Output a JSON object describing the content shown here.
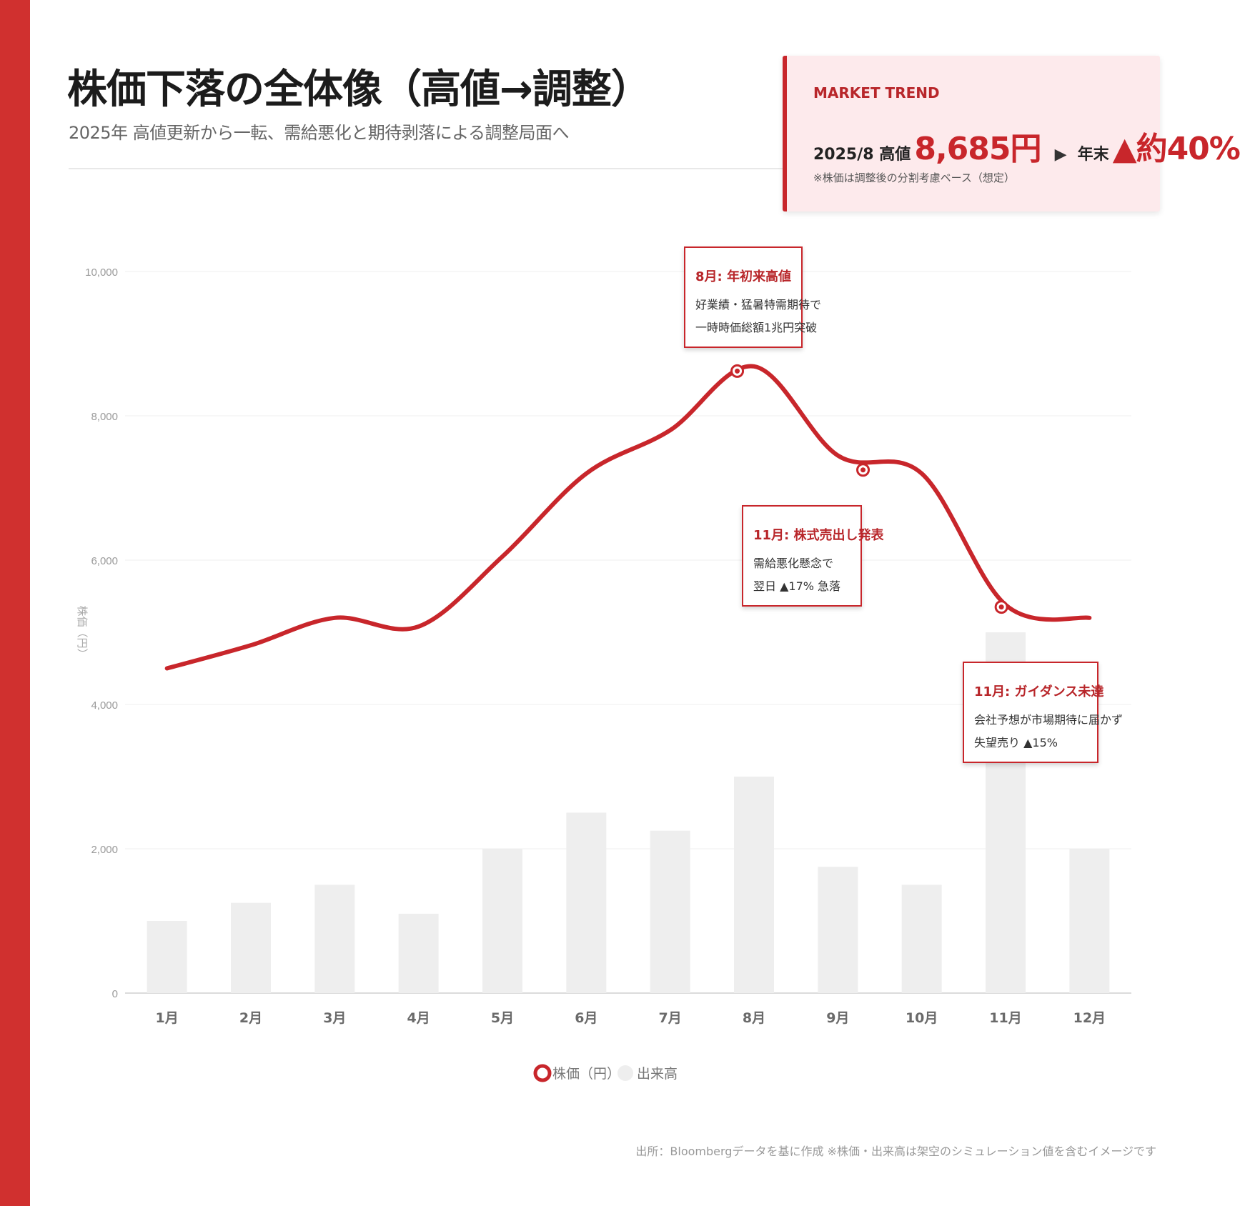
{
  "header": {
    "title": "株価下落の全体像（高値→調整）",
    "subtitle": "2025年 高値更新から一転、需給悪化と期待剥落による調整局面へ"
  },
  "trend_card": {
    "label": "MARKET TREND",
    "peak_label": "2025/8 高値",
    "peak_value": "8,685円",
    "arrow": "▶",
    "end_label": "年末",
    "change": "▲約40%",
    "note": "※株価は調整後の分割考慮ベース（想定）"
  },
  "chart_data": {
    "type": "bar+line",
    "categories": [
      "1月",
      "2月",
      "3月",
      "4月",
      "5月",
      "6月",
      "7月",
      "8月",
      "9月",
      "10月",
      "11月",
      "12月"
    ],
    "ylabel": "株価（円）",
    "ylim": [
      0,
      10000
    ],
    "yticks": [
      0,
      2000,
      4000,
      6000,
      8000,
      10000
    ],
    "ytick_labels": [
      "0",
      "2,000",
      "4,000",
      "6,000",
      "8,000",
      "10,000"
    ],
    "grid": true,
    "legend_position": "bottom",
    "series": [
      {
        "name": "株価（円）",
        "type": "line",
        "color": "#c8262b",
        "values": [
          4500,
          4820,
          5200,
          5080,
          6050,
          7200,
          7800,
          8685,
          7450,
          7200,
          5380,
          5200
        ]
      },
      {
        "name": "出来高",
        "type": "bar",
        "color": "#eeeeee",
        "values": [
          1000,
          1250,
          1500,
          1100,
          2000,
          2500,
          2250,
          3000,
          1750,
          1500,
          5000,
          2000
        ]
      }
    ],
    "markers": [
      {
        "x": 7.8,
        "y": 8620
      },
      {
        "x": 9.3,
        "y": 7250
      },
      {
        "x": 10.95,
        "y": 5350
      }
    ],
    "annotations": [
      {
        "title": "8月: 年初来高値",
        "lines": [
          "好業績・猛暑特需期待で",
          "一時時価総額1兆円突破"
        ]
      },
      {
        "title": "11月: 株式売出し発表",
        "lines": [
          "需給悪化懸念で",
          "翌日 ▲17% 急落"
        ]
      },
      {
        "title": "11月: ガイダンス未達",
        "lines": [
          "会社予想が市場期待に届かず",
          "失望売り ▲15%"
        ]
      }
    ]
  },
  "footer": {
    "source": "出所：Bloombergデータを基に作成 ※株価・出来高は架空のシミュレーション値を含むイメージです"
  }
}
